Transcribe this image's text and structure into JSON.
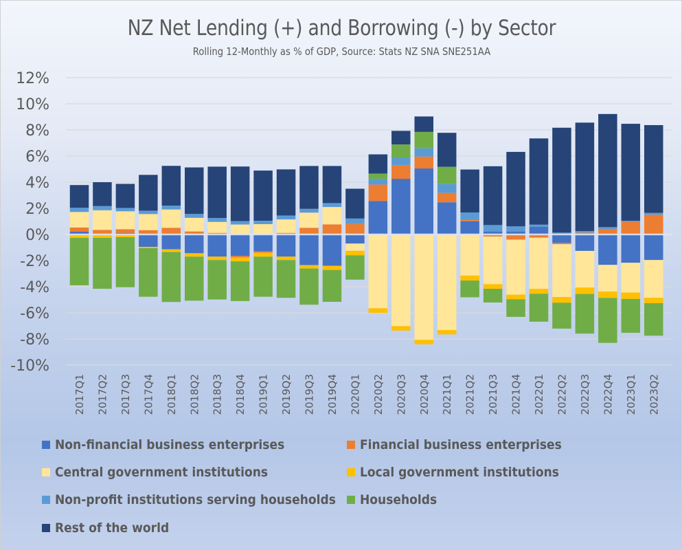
{
  "chart_data": {
    "type": "bar",
    "stacked": true,
    "title": "NZ Net Lending (+) and Borrowing (-) by Sector",
    "subtitle": "Rolling 12-Monthly as % of GDP, Source: Stats NZ SNA SNE251AA",
    "xlabel": "",
    "ylabel": "",
    "ylim": [
      -10,
      12
    ],
    "yticks": [
      12,
      10,
      8,
      6,
      4,
      2,
      0,
      -2,
      -4,
      -6,
      -8,
      -10
    ],
    "ytick_labels": [
      "12%",
      "10%",
      "8%",
      "6%",
      "4%",
      "2%",
      "0%",
      "-2%",
      "-4%",
      "-6%",
      "-8%",
      "-10%"
    ],
    "grid": true,
    "legend_position": "bottom",
    "categories": [
      "2017Q1",
      "2017Q2",
      "2017Q3",
      "2017Q4",
      "2018Q1",
      "2018Q2",
      "2018Q3",
      "2018Q4",
      "2019Q1",
      "2019Q2",
      "2019Q3",
      "2019Q4",
      "2020Q1",
      "2020Q2",
      "2020Q3",
      "2020Q4",
      "2021Q1",
      "2021Q2",
      "2021Q3",
      "2021Q4",
      "2022Q1",
      "2022Q2",
      "2022Q3",
      "2022Q4",
      "2023Q1",
      "2023Q2"
    ],
    "series": [
      {
        "name": "Non-financial business enterprises",
        "color": "#4472c4",
        "values": [
          0.21,
          0,
          0.12,
          -0.95,
          -1.14,
          -1.44,
          -1.7,
          -1.65,
          -1.3,
          -1.7,
          -2.35,
          -2.4,
          -0.7,
          2.56,
          4.26,
          5.05,
          2.46,
          1.0,
          0.23,
          0.23,
          0.58,
          -0.65,
          -1.26,
          -2.33,
          -2.17,
          -1.96
        ]
      },
      {
        "name": "Financial business enterprises",
        "color": "#ed7d31",
        "values": [
          0.32,
          0.35,
          0.28,
          0.33,
          0.51,
          0.23,
          0.12,
          -0.11,
          -0.1,
          0.12,
          0.51,
          0.77,
          0.8,
          1.26,
          1.05,
          0.91,
          0.72,
          0.1,
          -0.16,
          -0.4,
          -0.25,
          -0.1,
          0.14,
          0.42,
          0.95,
          1.51
        ]
      },
      {
        "name": "Central government institutions",
        "color": "#ffe699",
        "values": [
          1.19,
          1.5,
          1.37,
          1.23,
          1.4,
          1.04,
          0.84,
          0.76,
          0.79,
          1.03,
          1.16,
          1.33,
          -0.55,
          -5.65,
          -7.02,
          -8.07,
          -7.32,
          -3.15,
          -3.65,
          -4.21,
          -3.92,
          -4.04,
          -2.81,
          -2.04,
          -2.28,
          -2.89
        ]
      },
      {
        "name": "Local government institutions",
        "color": "#ffc000",
        "values": [
          -0.26,
          -0.26,
          -0.21,
          -0.1,
          -0.21,
          -0.26,
          -0.26,
          -0.3,
          -0.3,
          -0.26,
          -0.26,
          -0.32,
          -0.35,
          -0.35,
          -0.34,
          -0.34,
          -0.33,
          -0.38,
          -0.35,
          -0.35,
          -0.37,
          -0.44,
          -0.49,
          -0.49,
          -0.49,
          -0.41
        ]
      },
      {
        "name": "Non-profit institutions serving households",
        "color": "#5b9bd5",
        "values": [
          0.32,
          0.32,
          0.26,
          0.26,
          0.3,
          0.3,
          0.3,
          0.26,
          0.26,
          0.3,
          0.29,
          0.3,
          0.42,
          0.44,
          0.56,
          0.63,
          0.68,
          0.58,
          0.49,
          0.39,
          0.17,
          0.14,
          0.12,
          0.14,
          0.1,
          0.14
        ]
      },
      {
        "name": "Households",
        "color": "#70ad47",
        "values": [
          -3.63,
          -3.9,
          -3.83,
          -3.72,
          -3.82,
          -3.37,
          -3.02,
          -3.04,
          -3.07,
          -2.89,
          -2.77,
          -2.44,
          -1.86,
          0.4,
          1.02,
          1.26,
          1.32,
          -1.28,
          -1.05,
          -1.35,
          -2.14,
          -1.98,
          -3.03,
          -3.44,
          -2.59,
          -2.49
        ]
      },
      {
        "name": "Rest of the world",
        "color": "#264478",
        "values": [
          1.74,
          1.83,
          1.84,
          2.74,
          3.04,
          3.56,
          3.93,
          4.18,
          3.84,
          3.53,
          3.28,
          2.84,
          2.28,
          1.47,
          1.04,
          1.18,
          2.6,
          3.29,
          4.5,
          5.7,
          6.6,
          8.03,
          8.3,
          8.66,
          7.42,
          6.72
        ]
      }
    ]
  },
  "colors": {
    "text": "#595959",
    "gridline": "#d9d9d9"
  }
}
